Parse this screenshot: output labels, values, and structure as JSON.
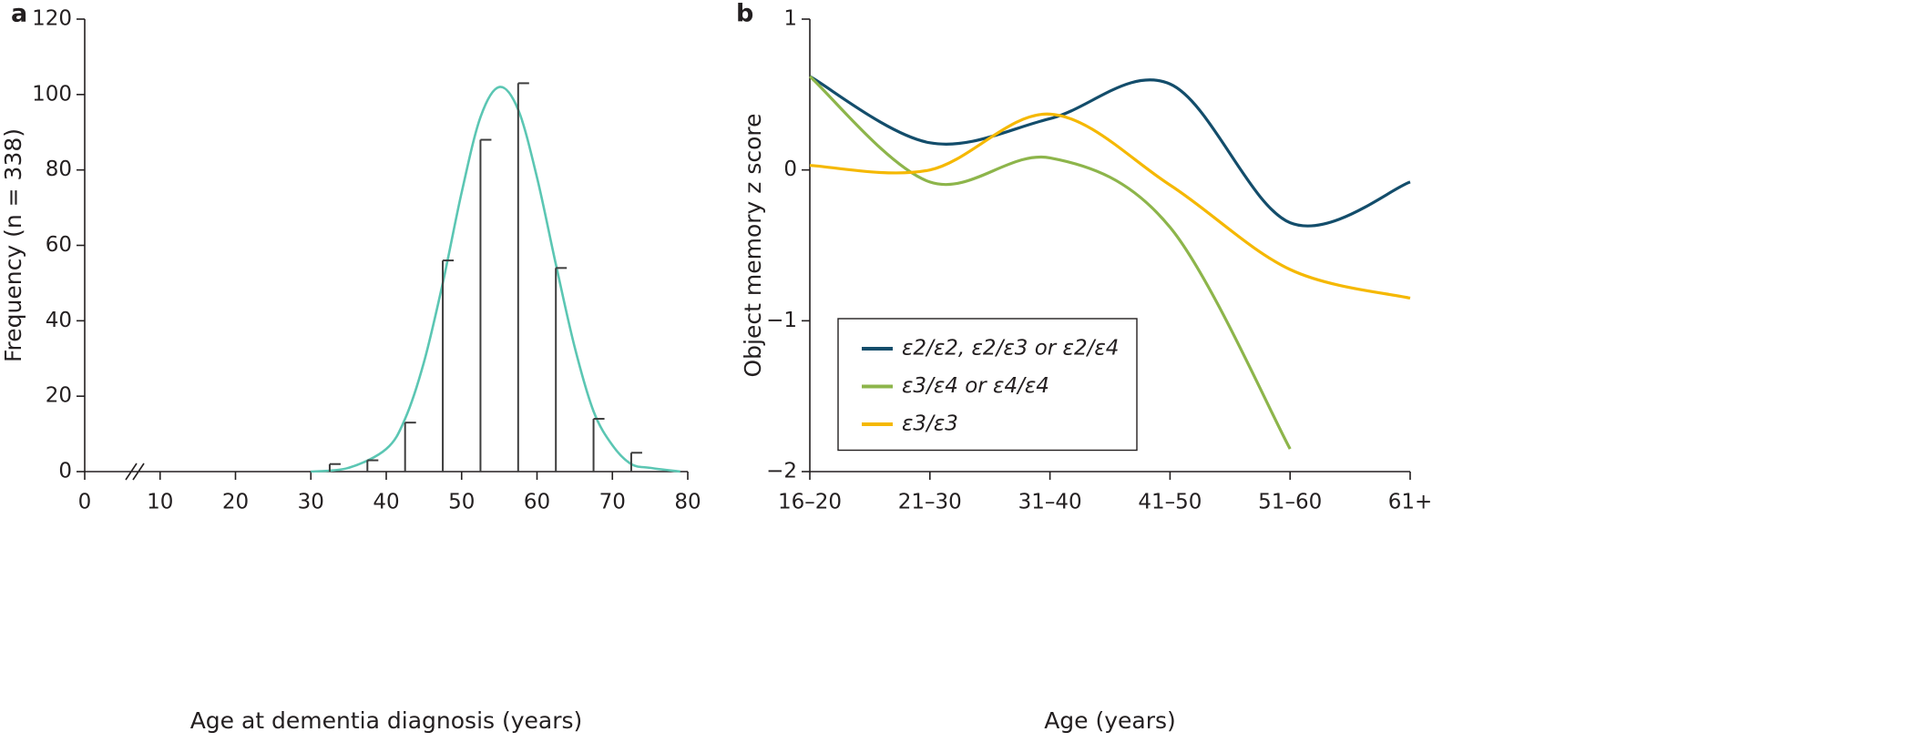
{
  "chart_data": [
    {
      "type": "stem",
      "label": "a",
      "xlabel": "Age at dementia diagnosis (years)",
      "ylabel": "Frequency (n = 338)",
      "x": [
        32.5,
        37.5,
        42.5,
        47.5,
        52.5,
        57.5,
        62.5,
        67.5,
        72.5
      ],
      "values": [
        2,
        3,
        13,
        56,
        88,
        103,
        54,
        14,
        5
      ],
      "color": "#3d3d3d",
      "curve": {
        "x": [
          30,
          35,
          40,
          42.5,
          45,
          47.5,
          50,
          52.5,
          55,
          57.5,
          60,
          62.5,
          65,
          67.5,
          70,
          72.5,
          75,
          79
        ],
        "values": [
          0,
          1,
          6,
          14,
          29,
          50,
          74,
          94,
          102,
          96,
          78,
          55,
          33,
          16,
          7,
          2,
          1,
          0
        ],
        "color": "#5bc6b3"
      },
      "xlim": [
        0,
        80
      ],
      "xticks": [
        0,
        10,
        20,
        30,
        40,
        50,
        60,
        70,
        80
      ],
      "ylim": [
        0,
        120
      ],
      "yticks": [
        0,
        20,
        40,
        60,
        80,
        100,
        120
      ]
    },
    {
      "type": "line",
      "label": "b",
      "xlabel": "Age (years)",
      "ylabel": "Object memory z score",
      "categories": [
        "16–20",
        "21–30",
        "31–40",
        "41–50",
        "51–60",
        "61+"
      ],
      "series": [
        {
          "name": "ε2/ε2, ε2/ε3 or ε2/ε4",
          "color": "#134d6b",
          "values": [
            0.62,
            0.18,
            0.34,
            0.57,
            -0.35,
            -0.08
          ]
        },
        {
          "name": "ε3/ε4 or ε4/ε4",
          "color": "#8db54b",
          "values": [
            0.62,
            -0.08,
            0.08,
            -0.38,
            -1.85,
            null
          ]
        },
        {
          "name": "ε3/ε3",
          "color": "#f5b800",
          "values": [
            0.03,
            0.0,
            0.37,
            -0.1,
            -0.66,
            -0.85
          ]
        }
      ],
      "ylim": [
        -2,
        1
      ],
      "yticks": [
        {
          "value": -2,
          "label": "−2"
        },
        {
          "value": -1,
          "label": "−1"
        },
        0,
        1
      ],
      "legend": "lower left"
    }
  ]
}
